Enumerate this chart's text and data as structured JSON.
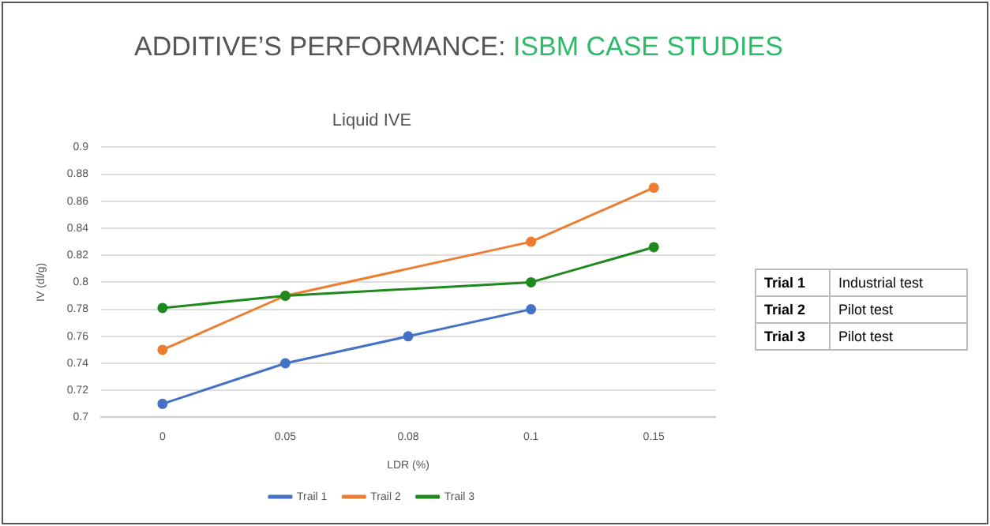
{
  "chart_data": {
    "type": "line",
    "title": "ADDITIVE’S PERFORMANCE:",
    "subtitle": "ISBM CASE STUDIES",
    "xlabel": "LDR (%)",
    "ylabel": "IV (dl/g)",
    "categories": [
      "0",
      "0.05",
      "0.08",
      "0.1",
      "0.15"
    ],
    "series": [
      {
        "name": "Trail 1",
        "color": "#4472c4",
        "values": [
          0.71,
          0.74,
          0.76,
          0.78,
          null
        ]
      },
      {
        "name": "Trail 2",
        "color": "#ed7d31",
        "values": [
          0.75,
          0.79,
          null,
          0.83,
          0.87
        ]
      },
      {
        "name": "Trail 3",
        "color": "#1e8a1e",
        "values": [
          0.781,
          0.79,
          null,
          0.8,
          0.826
        ]
      }
    ],
    "ylim": [
      0.7,
      0.9
    ],
    "yticks": [
      0.7,
      0.72,
      0.74,
      0.76,
      0.78,
      0.8,
      0.82,
      0.84,
      0.86,
      0.88,
      0.9
    ],
    "grid": "y",
    "legend": "bottom",
    "marker": "circle",
    "line_style": "solid",
    "annotations": [
      "Liquid IVE",
      "Trial 1",
      "Industrial test",
      "Trial 2",
      "Pilot test",
      "Trial 3",
      "Pilot test"
    ]
  }
}
